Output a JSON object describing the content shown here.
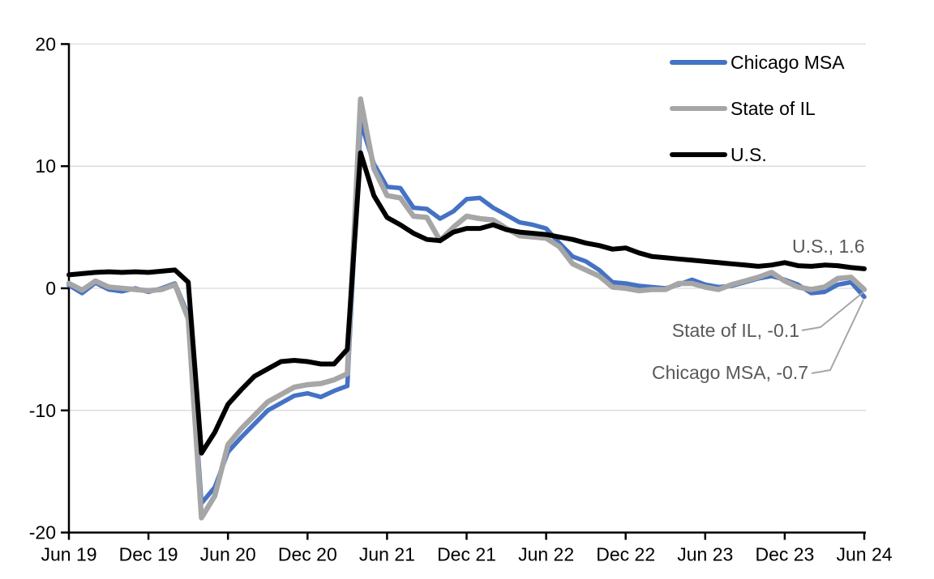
{
  "chart_data": {
    "type": "line",
    "title": "",
    "unit": "percent (year-over-year change)",
    "grid": true,
    "legend_position": "top-right",
    "x_axis": {
      "tick_labels": [
        "Jun 19",
        "Dec 19",
        "Jun 20",
        "Dec 20",
        "Jun 21",
        "Dec 21",
        "Jun 22",
        "Dec 22",
        "Jun 23",
        "Dec 23",
        "Jun 24"
      ],
      "tick_month_indices": [
        0,
        6,
        12,
        18,
        24,
        30,
        36,
        42,
        48,
        54,
        60
      ]
    },
    "y_axis": {
      "ticks": [
        20,
        10,
        0,
        -10,
        -20
      ],
      "min": -20,
      "max": 20
    },
    "months": [
      "Jun 19",
      "Jul 19",
      "Aug 19",
      "Sep 19",
      "Oct 19",
      "Nov 19",
      "Dec 19",
      "Jan 20",
      "Feb 20",
      "Mar 20",
      "Apr 20",
      "May 20",
      "Jun 20",
      "Jul 20",
      "Aug 20",
      "Sep 20",
      "Oct 20",
      "Nov 20",
      "Dec 20",
      "Jan 21",
      "Feb 21",
      "Mar 21",
      "Apr 21",
      "May 21",
      "Jun 21",
      "Jul 21",
      "Aug 21",
      "Sep 21",
      "Oct 21",
      "Nov 21",
      "Dec 21",
      "Jan 22",
      "Feb 22",
      "Mar 22",
      "Apr 22",
      "May 22",
      "Jun 22",
      "Jul 22",
      "Aug 22",
      "Sep 22",
      "Oct 22",
      "Nov 22",
      "Dec 22",
      "Jan 23",
      "Feb 23",
      "Mar 23",
      "Apr 23",
      "May 23",
      "Jun 23",
      "Jul 23",
      "Aug 23",
      "Sep 23",
      "Oct 23",
      "Nov 23",
      "Dec 23",
      "Jan 24",
      "Feb 24",
      "Mar 24",
      "Apr 24",
      "May 24",
      "Jun 24"
    ],
    "series": [
      {
        "name": "Chicago MSA",
        "color": "#4472C4",
        "line_width": 5.5,
        "end_value": -0.7,
        "values": [
          0.25,
          -0.4,
          0.45,
          -0.1,
          -0.25,
          0.0,
          -0.3,
          0.0,
          0.4,
          -2.2,
          -17.6,
          -16.3,
          -13.4,
          -12.2,
          -11.1,
          -10.0,
          -9.4,
          -8.8,
          -8.6,
          -8.9,
          -8.4,
          -8.0,
          13.6,
          10.2,
          8.3,
          8.2,
          6.6,
          6.5,
          5.7,
          6.3,
          7.3,
          7.4,
          6.6,
          6.0,
          5.4,
          5.2,
          4.9,
          3.7,
          2.6,
          2.2,
          1.5,
          0.5,
          0.4,
          0.2,
          0.1,
          0.0,
          0.3,
          0.7,
          0.3,
          0.1,
          0.2,
          0.5,
          0.8,
          1.0,
          0.7,
          0.3,
          -0.4,
          -0.3,
          0.3,
          0.5,
          -0.7
        ]
      },
      {
        "name": "State of IL",
        "color": "#A6A6A6",
        "line_width": 6.5,
        "end_value": -0.1,
        "values": [
          0.4,
          -0.15,
          0.6,
          0.1,
          0.0,
          -0.1,
          -0.2,
          -0.1,
          0.3,
          -2.5,
          -18.8,
          -17.0,
          -12.8,
          -11.5,
          -10.4,
          -9.3,
          -8.7,
          -8.1,
          -7.9,
          -7.8,
          -7.5,
          -7.0,
          15.5,
          9.8,
          7.6,
          7.4,
          5.9,
          5.8,
          3.9,
          5.0,
          5.9,
          5.7,
          5.6,
          4.9,
          4.3,
          4.2,
          4.1,
          3.4,
          2.0,
          1.5,
          1.0,
          0.1,
          0.0,
          -0.2,
          -0.1,
          -0.1,
          0.4,
          0.4,
          0.1,
          -0.1,
          0.3,
          0.6,
          0.9,
          1.3,
          0.6,
          0.1,
          -0.1,
          0.1,
          0.8,
          0.9,
          -0.1
        ]
      },
      {
        "name": "U.S.",
        "color": "#000000",
        "line_width": 6,
        "end_value": 1.6,
        "values": [
          1.1,
          1.2,
          1.3,
          1.35,
          1.3,
          1.35,
          1.3,
          1.4,
          1.5,
          0.5,
          -13.5,
          -11.8,
          -9.5,
          -8.3,
          -7.2,
          -6.6,
          -6.0,
          -5.9,
          -6.0,
          -6.2,
          -6.2,
          -5.0,
          11.1,
          7.6,
          5.8,
          5.2,
          4.5,
          4.0,
          3.9,
          4.6,
          4.9,
          4.9,
          5.2,
          4.8,
          4.6,
          4.5,
          4.4,
          4.2,
          4.0,
          3.7,
          3.5,
          3.2,
          3.3,
          2.9,
          2.6,
          2.5,
          2.4,
          2.3,
          2.2,
          2.1,
          2.0,
          1.9,
          1.8,
          1.9,
          2.1,
          1.85,
          1.8,
          1.9,
          1.85,
          1.7,
          1.6
        ]
      }
    ]
  },
  "legend": {
    "items": [
      {
        "label": "Chicago MSA",
        "color": "#4472C4"
      },
      {
        "label": "State of IL",
        "color": "#A6A6A6"
      },
      {
        "label": "U.S.",
        "color": "#000000"
      }
    ]
  },
  "annotations": [
    {
      "text": "U.S., 1.6",
      "series": "U.S."
    },
    {
      "text": "State of IL, -0.1",
      "series": "State of IL"
    },
    {
      "text": "Chicago MSA, -0.7",
      "series": "Chicago MSA"
    }
  ],
  "colors": {
    "gridline": "#D9D9D9",
    "axis": "#000000",
    "tick_label": "#000000",
    "annotation_text": "#595959",
    "leader_line": "#A6A6A6",
    "background": "#FFFFFF"
  }
}
